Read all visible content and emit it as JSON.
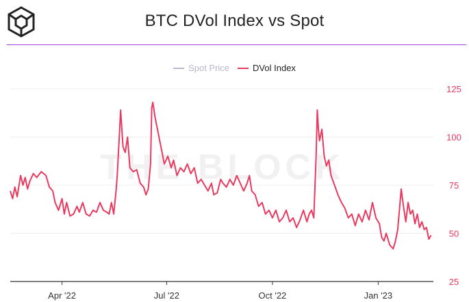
{
  "header": {
    "title": "BTC DVol Index vs Spot",
    "logo_icon": "the-block-cube-icon",
    "rule_color": "#a23bd0"
  },
  "watermark": "THE BLOCK",
  "colors": {
    "dvol": "#e8395f",
    "spot": "#b9b6cf",
    "axis_text": "#e8395f",
    "x_text": "#333333",
    "grid": "#eeeeee",
    "baseline": "#333333"
  },
  "chart_data": {
    "type": "line",
    "title": "BTC DVol Index vs Spot",
    "x_range": [
      "2022-02-15",
      "2023-02-18"
    ],
    "xticks": [
      {
        "date": "2022-04-01",
        "label": "Apr '22"
      },
      {
        "date": "2022-07-01",
        "label": "Jul '22"
      },
      {
        "date": "2022-10-01",
        "label": "Oct '22"
      },
      {
        "date": "2023-01-01",
        "label": "Jan '23"
      }
    ],
    "y_right": {
      "ticks": [
        25,
        50,
        75,
        100,
        125
      ],
      "ylim": [
        25,
        125
      ],
      "label_color": "#e8395f"
    },
    "grid": true,
    "legend_position": "top-center",
    "series": [
      {
        "name": "Spot Price",
        "color": "#b9b6cf",
        "hidden": true,
        "values": []
      },
      {
        "name": "DVol Index",
        "color": "#e8395f",
        "axis": "right",
        "points": [
          [
            "2022-02-15",
            72
          ],
          [
            "2022-02-17",
            68
          ],
          [
            "2022-02-19",
            74
          ],
          [
            "2022-02-21",
            69
          ],
          [
            "2022-02-24",
            80
          ],
          [
            "2022-02-26",
            75
          ],
          [
            "2022-02-28",
            79
          ],
          [
            "2022-03-02",
            73
          ],
          [
            "2022-03-04",
            77
          ],
          [
            "2022-03-07",
            81
          ],
          [
            "2022-03-10",
            79
          ],
          [
            "2022-03-14",
            82
          ],
          [
            "2022-03-18",
            80
          ],
          [
            "2022-03-21",
            74
          ],
          [
            "2022-03-24",
            72
          ],
          [
            "2022-03-26",
            66
          ],
          [
            "2022-03-29",
            62
          ],
          [
            "2022-04-01",
            68
          ],
          [
            "2022-04-03",
            60
          ],
          [
            "2022-04-05",
            66
          ],
          [
            "2022-04-08",
            59
          ],
          [
            "2022-04-11",
            60
          ],
          [
            "2022-04-14",
            64
          ],
          [
            "2022-04-16",
            61
          ],
          [
            "2022-04-19",
            66
          ],
          [
            "2022-04-22",
            60
          ],
          [
            "2022-04-25",
            59
          ],
          [
            "2022-04-28",
            62
          ],
          [
            "2022-05-01",
            61
          ],
          [
            "2022-05-04",
            66
          ],
          [
            "2022-05-07",
            62
          ],
          [
            "2022-05-10",
            61
          ],
          [
            "2022-05-12",
            60
          ],
          [
            "2022-05-14",
            66
          ],
          [
            "2022-05-16",
            60
          ],
          [
            "2022-05-18",
            72
          ],
          [
            "2022-05-19",
            80
          ],
          [
            "2022-05-21",
            102
          ],
          [
            "2022-05-22",
            114
          ],
          [
            "2022-05-24",
            95
          ],
          [
            "2022-05-26",
            92
          ],
          [
            "2022-05-28",
            100
          ],
          [
            "2022-05-30",
            84
          ],
          [
            "2022-06-02",
            82
          ],
          [
            "2022-06-05",
            83
          ],
          [
            "2022-06-08",
            76
          ],
          [
            "2022-06-11",
            74
          ],
          [
            "2022-06-13",
            70
          ],
          [
            "2022-06-15",
            73
          ],
          [
            "2022-06-17",
            86
          ],
          [
            "2022-06-18",
            115
          ],
          [
            "2022-06-19",
            118
          ],
          [
            "2022-06-21",
            110
          ],
          [
            "2022-06-23",
            104
          ],
          [
            "2022-06-25",
            98
          ],
          [
            "2022-06-27",
            92
          ],
          [
            "2022-06-29",
            86
          ],
          [
            "2022-07-02",
            90
          ],
          [
            "2022-07-05",
            84
          ],
          [
            "2022-07-07",
            88
          ],
          [
            "2022-07-10",
            80
          ],
          [
            "2022-07-13",
            84
          ],
          [
            "2022-07-16",
            82
          ],
          [
            "2022-07-19",
            86
          ],
          [
            "2022-07-22",
            81
          ],
          [
            "2022-07-25",
            84
          ],
          [
            "2022-07-28",
            76
          ],
          [
            "2022-07-31",
            78
          ],
          [
            "2022-08-03",
            75
          ],
          [
            "2022-08-06",
            72
          ],
          [
            "2022-08-09",
            76
          ],
          [
            "2022-08-11",
            70
          ],
          [
            "2022-08-14",
            71
          ],
          [
            "2022-08-17",
            78
          ],
          [
            "2022-08-19",
            76
          ],
          [
            "2022-08-22",
            74
          ],
          [
            "2022-08-25",
            78
          ],
          [
            "2022-08-28",
            75
          ],
          [
            "2022-08-31",
            80
          ],
          [
            "2022-09-03",
            76
          ],
          [
            "2022-09-06",
            72
          ],
          [
            "2022-09-09",
            76
          ],
          [
            "2022-09-11",
            80
          ],
          [
            "2022-09-13",
            72
          ],
          [
            "2022-09-16",
            70
          ],
          [
            "2022-09-19",
            64
          ],
          [
            "2022-09-22",
            66
          ],
          [
            "2022-09-25",
            60
          ],
          [
            "2022-09-28",
            62
          ],
          [
            "2022-10-01",
            58
          ],
          [
            "2022-10-04",
            62
          ],
          [
            "2022-10-07",
            56
          ],
          [
            "2022-10-10",
            58
          ],
          [
            "2022-10-13",
            62
          ],
          [
            "2022-10-16",
            56
          ],
          [
            "2022-10-19",
            58
          ],
          [
            "2022-10-22",
            53
          ],
          [
            "2022-10-25",
            57
          ],
          [
            "2022-10-28",
            62
          ],
          [
            "2022-10-31",
            56
          ],
          [
            "2022-11-02",
            60
          ],
          [
            "2022-11-04",
            62
          ],
          [
            "2022-11-06",
            58
          ],
          [
            "2022-11-08",
            90
          ],
          [
            "2022-11-09",
            114
          ],
          [
            "2022-11-10",
            104
          ],
          [
            "2022-11-11",
            98
          ],
          [
            "2022-11-13",
            104
          ],
          [
            "2022-11-15",
            90
          ],
          [
            "2022-11-17",
            85
          ],
          [
            "2022-11-19",
            88
          ],
          [
            "2022-11-21",
            80
          ],
          [
            "2022-11-24",
            75
          ],
          [
            "2022-11-27",
            70
          ],
          [
            "2022-11-30",
            66
          ],
          [
            "2022-12-03",
            63
          ],
          [
            "2022-12-06",
            58
          ],
          [
            "2022-12-09",
            60
          ],
          [
            "2022-12-12",
            54
          ],
          [
            "2022-12-15",
            60
          ],
          [
            "2022-12-18",
            56
          ],
          [
            "2022-12-21",
            62
          ],
          [
            "2022-12-24",
            57
          ],
          [
            "2022-12-27",
            66
          ],
          [
            "2022-12-30",
            58
          ],
          [
            "2023-01-02",
            55
          ],
          [
            "2023-01-04",
            48
          ],
          [
            "2023-01-06",
            46
          ],
          [
            "2023-01-08",
            50
          ],
          [
            "2023-01-11",
            44
          ],
          [
            "2023-01-14",
            42
          ],
          [
            "2023-01-16",
            46
          ],
          [
            "2023-01-18",
            52
          ],
          [
            "2023-01-20",
            66
          ],
          [
            "2023-01-21",
            73
          ],
          [
            "2023-01-23",
            64
          ],
          [
            "2023-01-25",
            56
          ],
          [
            "2023-01-27",
            66
          ],
          [
            "2023-01-29",
            60
          ],
          [
            "2023-01-31",
            62
          ],
          [
            "2023-02-02",
            55
          ],
          [
            "2023-02-04",
            60
          ],
          [
            "2023-02-06",
            53
          ],
          [
            "2023-02-08",
            56
          ],
          [
            "2023-02-10",
            52
          ],
          [
            "2023-02-12",
            53
          ],
          [
            "2023-02-14",
            47
          ],
          [
            "2023-02-16",
            49
          ]
        ]
      }
    ]
  }
}
